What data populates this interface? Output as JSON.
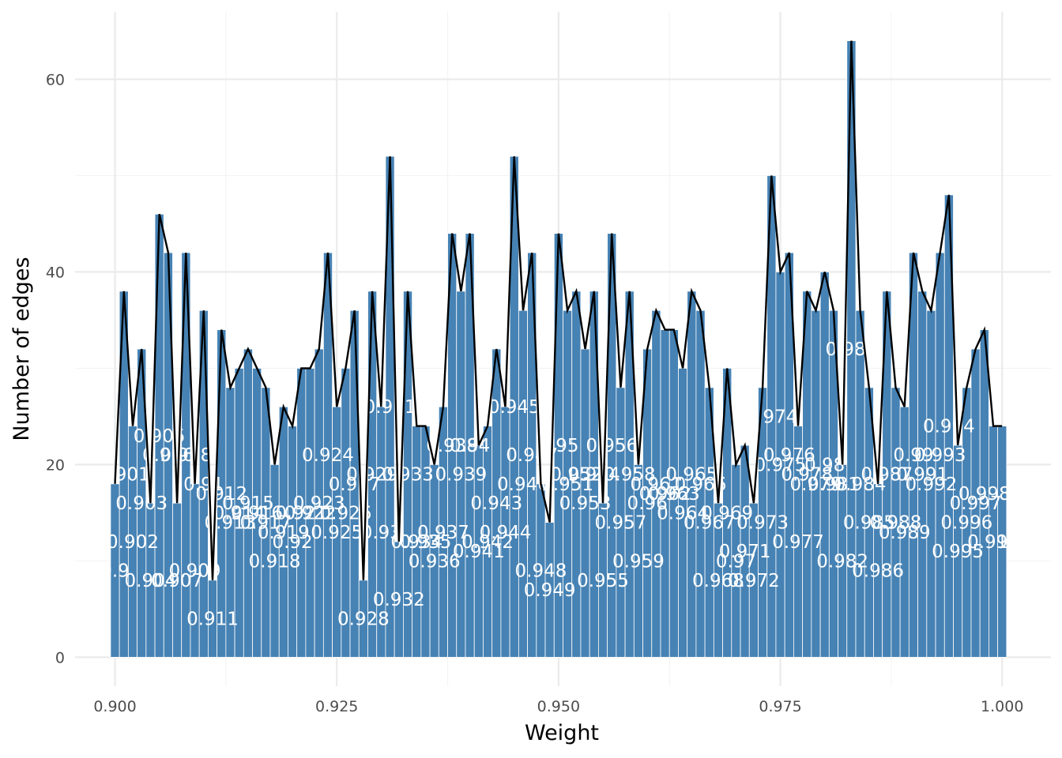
{
  "chart_data": {
    "type": "bar",
    "xlabel": "Weight",
    "ylabel": "Number of edges",
    "xlim": [
      0.8955,
      1.0055
    ],
    "ylim": [
      -3,
      67
    ],
    "x_ticks": [
      "0.900",
      "0.925",
      "0.950",
      "0.975",
      "1.000"
    ],
    "x_tick_values": [
      0.9,
      0.925,
      0.95,
      0.975,
      1.0
    ],
    "y_ticks": [
      "0",
      "20",
      "40",
      "60"
    ],
    "y_tick_values": [
      0,
      20,
      40,
      60
    ],
    "grid": true,
    "bar_color": "#4682b4",
    "line_color": "#000000",
    "label_color": "#ffffff",
    "overlay": "line through bar tops",
    "x": [
      0.9,
      0.901,
      0.902,
      0.903,
      0.904,
      0.905,
      0.906,
      0.907,
      0.908,
      0.909,
      0.91,
      0.911,
      0.912,
      0.913,
      0.914,
      0.915,
      0.916,
      0.917,
      0.918,
      0.919,
      0.92,
      0.921,
      0.922,
      0.923,
      0.924,
      0.925,
      0.926,
      0.927,
      0.928,
      0.929,
      0.93,
      0.931,
      0.932,
      0.933,
      0.934,
      0.935,
      0.936,
      0.937,
      0.938,
      0.939,
      0.94,
      0.941,
      0.942,
      0.943,
      0.944,
      0.945,
      0.946,
      0.947,
      0.948,
      0.949,
      0.95,
      0.951,
      0.952,
      0.953,
      0.954,
      0.955,
      0.956,
      0.957,
      0.958,
      0.959,
      0.96,
      0.961,
      0.962,
      0.963,
      0.964,
      0.965,
      0.966,
      0.967,
      0.968,
      0.969,
      0.97,
      0.971,
      0.972,
      0.973,
      0.974,
      0.975,
      0.976,
      0.977,
      0.978,
      0.979,
      0.98,
      0.981,
      0.982,
      0.983,
      0.984,
      0.985,
      0.986,
      0.987,
      0.988,
      0.989,
      0.99,
      0.991,
      0.992,
      0.993,
      0.994,
      0.995,
      0.996,
      0.997,
      0.998,
      0.999,
      1.0
    ],
    "values": [
      18,
      38,
      24,
      32,
      16,
      46,
      42,
      16,
      42,
      18,
      36,
      8,
      34,
      28,
      30,
      32,
      30,
      28,
      20,
      26,
      24,
      30,
      30,
      32,
      42,
      26,
      30,
      36,
      8,
      38,
      26,
      52,
      12,
      38,
      24,
      24,
      20,
      26,
      44,
      38,
      44,
      22,
      24,
      32,
      26,
      52,
      36,
      42,
      18,
      14,
      44,
      36,
      38,
      32,
      38,
      16,
      44,
      28,
      38,
      20,
      32,
      36,
      34,
      34,
      30,
      38,
      36,
      28,
      16,
      30,
      20,
      22,
      16,
      28,
      50,
      40,
      42,
      24,
      38,
      36,
      40,
      36,
      20,
      64,
      36,
      28,
      18,
      38,
      28,
      26,
      42,
      38,
      36,
      42,
      48,
      22,
      28,
      32,
      34,
      24,
      24
    ],
    "labels": [
      "0.9",
      "0.901",
      "0.902",
      "0.903",
      "0.904",
      "0.905",
      "0.906",
      "0.907",
      "0.908",
      "0.909",
      "0.91",
      "0.911",
      "0.912",
      "0.913",
      "0.914",
      "0.915",
      "0.916",
      "0.917",
      "0.918",
      "0.919",
      "0.92",
      "0.921",
      "0.922",
      "0.923",
      "0.924",
      "0.925",
      "0.926",
      "0.927",
      "0.928",
      "0.929",
      "0.93",
      "0.931",
      "0.932",
      "0.933",
      "0.934",
      "0.935",
      "0.936",
      "0.937",
      "0.938",
      "0.939",
      "0.94",
      "0.941",
      "0.942",
      "0.943",
      "0.944",
      "0.945",
      "0.946",
      "0.947",
      "0.948",
      "0.949",
      "0.95",
      "0.951",
      "0.952",
      "0.953",
      "0.954",
      "0.955",
      "0.956",
      "0.957",
      "0.958",
      "0.959",
      "0.96",
      "0.961",
      "0.962",
      "0.963",
      "0.964",
      "0.965",
      "0.966",
      "0.967",
      "0.968",
      "0.969",
      "0.97",
      "0.971",
      "0.972",
      "0.973",
      "0.974",
      "0.975",
      "0.976",
      "0.977",
      "0.978",
      "0.979",
      "0.98",
      "0.981",
      "0.982",
      "0.983",
      "0.984",
      "0.985",
      "0.986",
      "0.987",
      "0.988",
      "0.989",
      "0.99",
      "0.991",
      "0.992",
      "0.993",
      "0.994",
      "0.995",
      "0.996",
      "0.997",
      "0.998",
      "0.999",
      "1"
    ]
  }
}
